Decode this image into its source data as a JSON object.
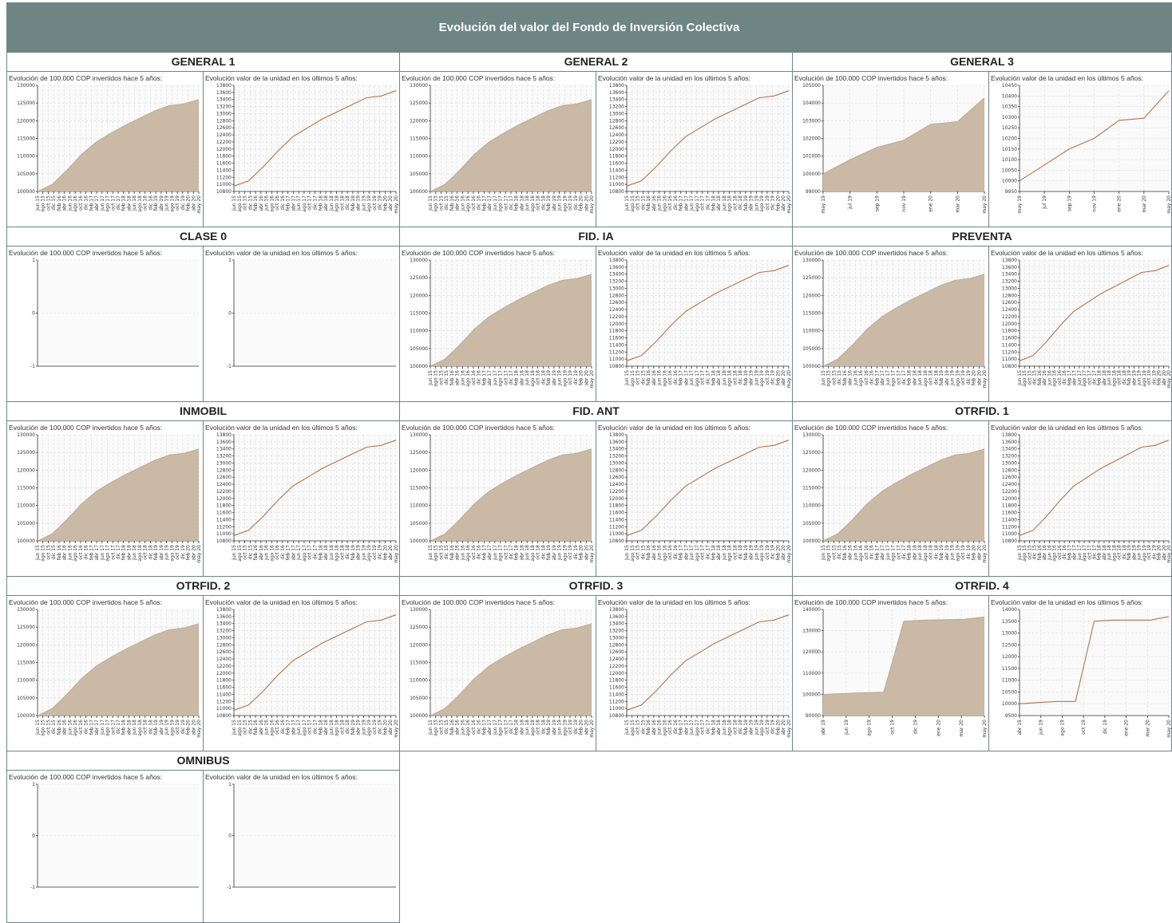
{
  "title": "Evolución del valor del Fondo de Inversión Colectiva",
  "colors": {
    "header": "#6e8584",
    "area": "#c9b9a5",
    "line": "#b5734a"
  },
  "labels": {
    "left": "Evolución de 100.000 COP invertidos hace 5 años:",
    "right": "Evolución valor de la unidad en los últimos 5 años:"
  },
  "month_labels_5y": [
    "jun 15",
    "ago 15",
    "oct 15",
    "dic 15",
    "feb 16",
    "abr 16",
    "jun 16",
    "ago 16",
    "oct 16",
    "dic 16",
    "feb 17",
    "abr 17",
    "jun 17",
    "ago 17",
    "oct 17",
    "dic 17",
    "feb 18",
    "abr 18",
    "jun 18",
    "ago 18",
    "oct 18",
    "dic 18",
    "feb 19",
    "abr 19",
    "jun 19",
    "ago 19",
    "oct 19",
    "dic 19",
    "feb 20",
    "abr 20",
    "may 20"
  ],
  "funds": [
    {
      "name": "GENERAL 1",
      "kind": "5y"
    },
    {
      "name": "GENERAL 2",
      "kind": "5y"
    },
    {
      "name": "GENERAL 3",
      "kind": "1y_g3"
    },
    {
      "name": "CLASE 0",
      "kind": "empty"
    },
    {
      "name": "FID. IA",
      "kind": "5y"
    },
    {
      "name": "PREVENTA",
      "kind": "5y"
    },
    {
      "name": "INMOBIL",
      "kind": "5y"
    },
    {
      "name": "FID. ANT",
      "kind": "5y"
    },
    {
      "name": "OTRFID. 1",
      "kind": "5y"
    },
    {
      "name": "OTRFID. 2",
      "kind": "5y"
    },
    {
      "name": "OTRFID. 3",
      "kind": "5y"
    },
    {
      "name": "OTRFID. 4",
      "kind": "1y_o4"
    },
    {
      "name": "OMNIBUS",
      "kind": "empty"
    }
  ],
  "chart_data": [
    {
      "id": "5y-left",
      "type": "area",
      "ylim": [
        100000,
        130000
      ],
      "yticks": [
        100000,
        105000,
        110000,
        115000,
        120000,
        125000,
        130000
      ],
      "x": [
        "jun 15",
        "dic 15",
        "jun 16",
        "dic 16",
        "jun 17",
        "dic 17",
        "jun 18",
        "dic 18",
        "jun 19",
        "dic 19",
        "mar 20",
        "may 20"
      ],
      "values": [
        100000,
        102000,
        106000,
        110500,
        114000,
        116500,
        118800,
        120800,
        122800,
        124300,
        124800,
        126000
      ]
    },
    {
      "id": "5y-right",
      "type": "line",
      "ylim": [
        10800,
        13800
      ],
      "yticks": [
        10800,
        11000,
        11200,
        11400,
        11600,
        11800,
        12000,
        12200,
        12400,
        12600,
        12800,
        13000,
        13200,
        13400,
        13600,
        13800
      ],
      "x": [
        "jun 15",
        "dic 15",
        "jun 16",
        "dic 16",
        "jun 17",
        "dic 17",
        "jun 18",
        "dic 18",
        "jun 19",
        "dic 19",
        "mar 20",
        "may 20"
      ],
      "values": [
        10950,
        11100,
        11500,
        11950,
        12350,
        12600,
        12850,
        13050,
        13250,
        13450,
        13500,
        13650
      ]
    },
    {
      "id": "g3-left",
      "type": "area",
      "ylim": [
        99000,
        105000
      ],
      "yticks": [
        99000,
        100000,
        101000,
        102000,
        103000,
        104000,
        105000
      ],
      "x": [
        "may 19",
        "jul 19",
        "sep 19",
        "nov 19",
        "ene 20",
        "mar 20",
        "may 20"
      ],
      "xticks": [
        "may 19",
        "jul 19",
        "sep 19",
        "nov 19",
        "ene 20",
        "mar 20",
        "may 20"
      ],
      "values": [
        100000,
        100800,
        101500,
        101900,
        102800,
        102950,
        104300
      ]
    },
    {
      "id": "g3-right",
      "type": "line",
      "ylim": [
        9950,
        10450
      ],
      "yticks": [
        9950,
        10000,
        10050,
        10100,
        10150,
        10200,
        10250,
        10300,
        10350,
        10400,
        10450
      ],
      "x": [
        "may 19",
        "jul 19",
        "sep 19",
        "nov 19",
        "ene 20",
        "mar 20",
        "may 20"
      ],
      "xticks": [
        "may 19",
        "jul 19",
        "sep 19",
        "nov 19",
        "ene 20",
        "mar 20",
        "may 20"
      ],
      "values": [
        10000,
        10075,
        10150,
        10200,
        10285,
        10295,
        10425
      ]
    },
    {
      "id": "o4-left",
      "type": "area",
      "ylim": [
        90000,
        140000
      ],
      "yticks": [
        90000,
        100000,
        110000,
        120000,
        130000,
        140000
      ],
      "x": [
        "abr 19",
        "jun 19",
        "ago 19",
        "oct 19",
        "nov 19",
        "dic 19",
        "ene 20",
        "mar 20",
        "may 20"
      ],
      "xticks": [
        "abr 19",
        "jun 19",
        "ago 19",
        "oct 19",
        "dic 19",
        "ene 20",
        "mar 20",
        "may 20"
      ],
      "values": [
        100000,
        100400,
        100800,
        101000,
        134500,
        135000,
        135200,
        135400,
        136500
      ]
    },
    {
      "id": "o4-right",
      "type": "line",
      "ylim": [
        9500,
        14000
      ],
      "yticks": [
        9500,
        10000,
        10500,
        11000,
        11500,
        12000,
        12500,
        13000,
        13500,
        14000
      ],
      "x": [
        "abr 19",
        "jun 19",
        "ago 19",
        "oct 19",
        "nov 19",
        "dic 19",
        "ene 20",
        "mar 20",
        "may 20"
      ],
      "xticks": [
        "abr 19",
        "jun 19",
        "ago 19",
        "oct 19",
        "dic 19",
        "ene 20",
        "mar 20",
        "may 20"
      ],
      "values": [
        10000,
        10050,
        10100,
        10100,
        13500,
        13550,
        13550,
        13550,
        13700
      ]
    },
    {
      "id": "empty",
      "type": "line",
      "ylim": [
        -1,
        1
      ],
      "yticks": [
        -1,
        0,
        1
      ],
      "x": [],
      "values": []
    }
  ]
}
